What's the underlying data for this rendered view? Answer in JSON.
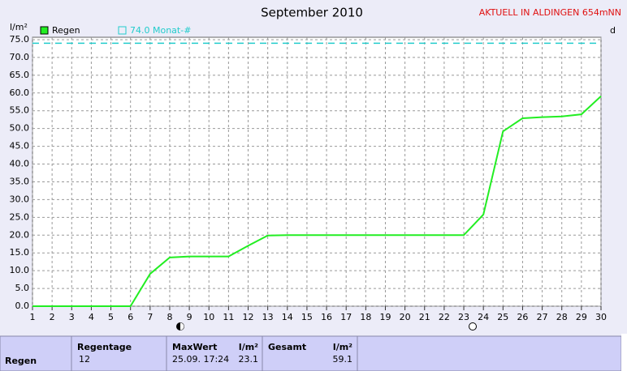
{
  "chart_data": {
    "type": "line",
    "title": "September 2010",
    "subtitle": "AKTUELL IN ALDINGEN 654mNN",
    "y_label": "l/m²",
    "x_label": "d",
    "x": [
      1,
      2,
      3,
      4,
      5,
      6,
      7,
      8,
      9,
      10,
      11,
      12,
      13,
      14,
      15,
      16,
      17,
      18,
      19,
      20,
      21,
      22,
      23,
      24,
      25,
      26,
      27,
      28,
      29,
      30
    ],
    "series": [
      {
        "name": "Regen",
        "color": "#22ee22",
        "values": [
          0,
          0,
          0,
          0,
          0,
          0,
          9.1,
          13.7,
          14.0,
          14.0,
          14.0,
          17.0,
          19.9,
          20.0,
          20.0,
          20.0,
          20.0,
          20.0,
          20.0,
          20.0,
          20.0,
          20.0,
          20.0,
          25.8,
          49.2,
          52.9,
          53.2,
          53.4,
          54.0,
          59.1
        ]
      }
    ],
    "reference": {
      "value": 74,
      "label": "74.0 Monat-#",
      "color": "#22cccc"
    },
    "xlim": [
      1,
      30
    ],
    "xticks": [
      1,
      2,
      3,
      4,
      5,
      6,
      7,
      8,
      9,
      10,
      11,
      12,
      13,
      14,
      15,
      16,
      17,
      18,
      19,
      20,
      21,
      22,
      23,
      24,
      25,
      26,
      27,
      28,
      29,
      30
    ],
    "ylim": [
      0,
      75
    ],
    "yticks": [
      {
        "value": 0,
        "label": "0.0"
      },
      {
        "value": 5,
        "label": "5.0"
      },
      {
        "value": 10,
        "label": "10.0"
      },
      {
        "value": 15,
        "label": "15.0"
      },
      {
        "value": 20,
        "label": "20.0"
      },
      {
        "value": 25,
        "label": "25.0"
      },
      {
        "value": 30,
        "label": "30.0"
      },
      {
        "value": 35,
        "label": "35.0"
      },
      {
        "value": 40,
        "label": "40.0"
      },
      {
        "value": 45,
        "label": "45.0"
      },
      {
        "value": 50,
        "label": "50.0"
      },
      {
        "value": 55,
        "label": "55.0"
      },
      {
        "value": 60,
        "label": "60.0"
      },
      {
        "value": 65,
        "label": "65.0"
      },
      {
        "value": 70,
        "label": "70.0"
      },
      {
        "value": 75,
        "label": "75.0"
      }
    ],
    "grid": true
  },
  "table": {
    "row_label": "Regen",
    "headers": [
      "Regentage",
      "MaxWert",
      "l/m²",
      "Gesamt",
      "l/m²"
    ],
    "values": [
      "12",
      "25.09. 17:24",
      "23.1",
      "59.1"
    ]
  }
}
